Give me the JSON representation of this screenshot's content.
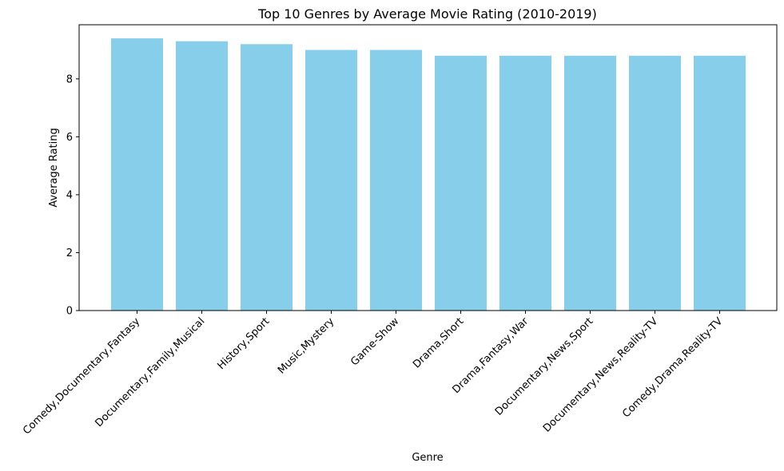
{
  "chart_data": {
    "type": "bar",
    "title": "Top 10 Genres by Average Movie Rating (2010-2019)",
    "xlabel": "Genre",
    "ylabel": "Average Rating",
    "categories": [
      "Comedy,Documentary,Fantasy",
      "Documentary,Family,Musical",
      "History,Sport",
      "Music,Mystery",
      "Game-Show",
      "Drama,Short",
      "Drama,Fantasy,War",
      "Documentary,News,Sport",
      "Documentary,News,Reality-TV",
      "Comedy,Drama,Reality-TV"
    ],
    "values": [
      9.4,
      9.3,
      9.2,
      9.0,
      9.0,
      8.8,
      8.8,
      8.8,
      8.8,
      8.8
    ],
    "ylim": [
      0,
      9.87
    ],
    "yticks": [
      0,
      2,
      4,
      6,
      8
    ],
    "bar_color": "#87ceeb",
    "grid": false,
    "legend": "none"
  }
}
